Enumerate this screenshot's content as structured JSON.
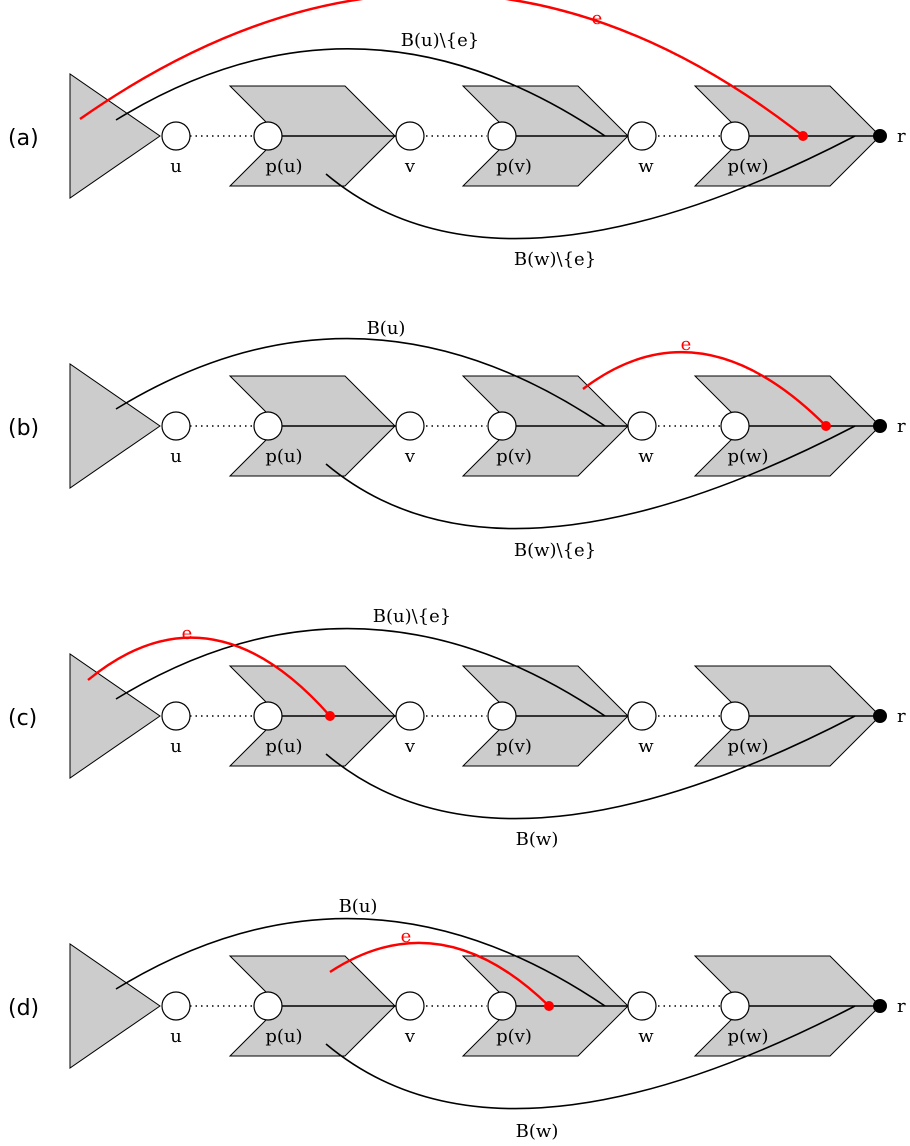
{
  "node_labels": [
    "u",
    "p(u)",
    "v",
    "p(v)",
    "w",
    "p(w)",
    "r"
  ],
  "colors": {
    "block_fill": "#cccccc",
    "highlight": "#ff0000",
    "line": "#000000"
  },
  "panels": [
    {
      "label": "(a)",
      "curve_labels": {
        "upper": "B(u)\\{e}",
        "lower": "B(w)\\{e}",
        "edge": "e"
      }
    },
    {
      "label": "(b)",
      "curve_labels": {
        "upper": "B(u)",
        "lower": "B(w)\\{e}",
        "edge": "e"
      }
    },
    {
      "label": "(c)",
      "curve_labels": {
        "upper": "B(u)\\{e}",
        "lower": "B(w)",
        "edge": "e"
      }
    },
    {
      "label": "(d)",
      "curve_labels": {
        "upper": "B(u)",
        "lower": "B(w)",
        "edge": "e"
      }
    }
  ]
}
